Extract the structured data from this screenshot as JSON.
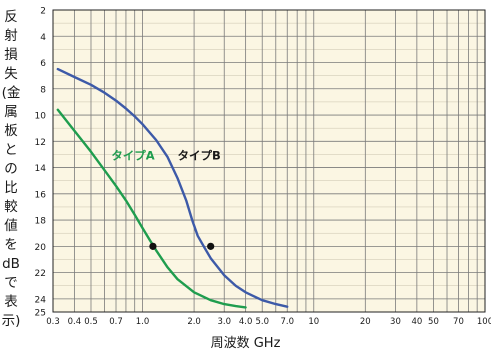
{
  "chart_data": {
    "type": "line",
    "title": "",
    "title_fragment": "",
    "xlabel": "周波数  GHz",
    "ylabel": "反射損失(金属板との比較値をdBで表示)",
    "x_scale": "log",
    "xlim": [
      0.3,
      100
    ],
    "ylim": [
      2,
      25
    ],
    "y_inverted": true,
    "grid": true,
    "x_ticks": [
      0.3,
      0.4,
      0.5,
      0.7,
      1.0,
      2.0,
      3.0,
      4.0,
      5.0,
      7.0,
      10,
      20,
      30,
      40,
      50,
      70,
      100
    ],
    "x_tick_labels": [
      "0.3",
      "0.4",
      "0.5",
      "0.7",
      "1.0",
      "2.0",
      "3.0",
      "4.0",
      "5.0",
      "7.0",
      "10",
      "20",
      "30",
      "40",
      "50",
      "70",
      "100"
    ],
    "y_ticks": [
      2,
      4,
      6,
      8,
      10,
      12,
      14,
      16,
      18,
      20,
      22,
      24,
      25
    ],
    "y_tick_labels": [
      "2",
      "4",
      "6",
      "8",
      "10",
      "12",
      "14",
      "16",
      "18",
      "20",
      "22",
      "24",
      "25"
    ],
    "series": [
      {
        "name": "タイプA",
        "color": "#1f9d4e",
        "x": [
          0.32,
          0.4,
          0.5,
          0.6,
          0.7,
          0.8,
          0.9,
          1.0,
          1.1,
          1.2,
          1.4,
          1.6,
          2.0,
          2.5,
          3.0,
          3.5,
          4.0
        ],
        "y": [
          9.6,
          11.2,
          12.8,
          14.2,
          15.4,
          16.5,
          17.6,
          18.6,
          19.5,
          20.3,
          21.6,
          22.5,
          23.5,
          24.1,
          24.4,
          24.55,
          24.65
        ]
      },
      {
        "name": "タイプB",
        "color": "#3d5aa8",
        "x": [
          0.32,
          0.4,
          0.5,
          0.6,
          0.7,
          0.8,
          0.9,
          1.0,
          1.2,
          1.4,
          1.6,
          1.8,
          1.95,
          2.1,
          2.3,
          2.5,
          3.0,
          3.5,
          4.0,
          5.0,
          6.0,
          7.0
        ],
        "y": [
          6.5,
          7.1,
          7.7,
          8.3,
          8.9,
          9.5,
          10.1,
          10.7,
          11.9,
          13.2,
          14.8,
          16.5,
          18.0,
          19.2,
          20.1,
          20.9,
          22.2,
          23.0,
          23.5,
          24.1,
          24.4,
          24.6
        ]
      }
    ],
    "markers": [
      {
        "series": "タイプA",
        "x": 1.15,
        "y": 20.0
      },
      {
        "series": "タイプB",
        "x": 2.5,
        "y": 20.0
      }
    ],
    "legend_placement": "inline labels near curves"
  }
}
